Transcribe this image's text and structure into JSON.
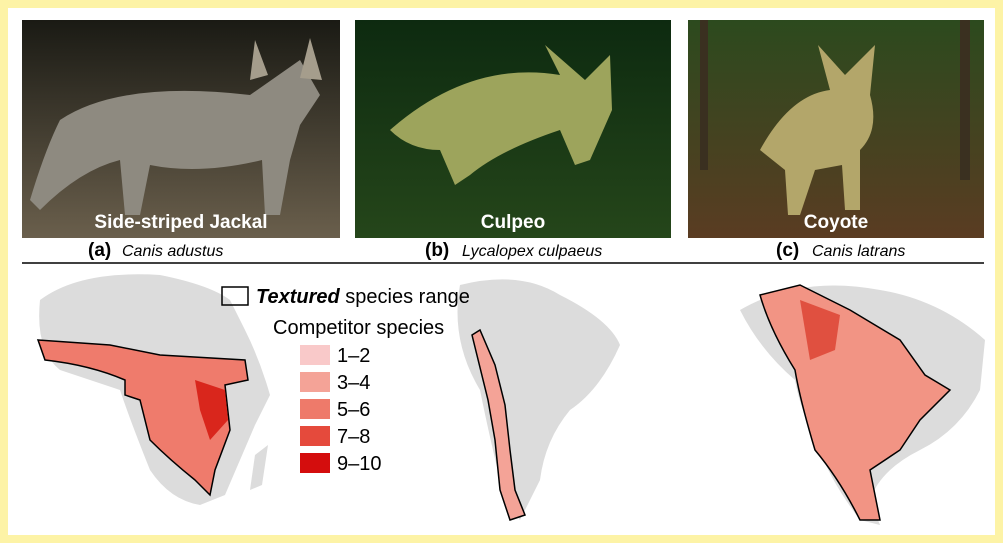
{
  "panels": [
    {
      "label": "(a)",
      "common_name": "Side-striped Jackal",
      "scientific_name": "Canis adustus"
    },
    {
      "label": "(b)",
      "common_name": "Culpeo",
      "scientific_name": "Lycalopex culpaeus"
    },
    {
      "label": "(c)",
      "common_name": "Coyote",
      "scientific_name": "Canis latrans"
    }
  ],
  "legend": {
    "range_emphasis": "Textured",
    "range_text": "species range",
    "title": "Competitor species",
    "items": [
      "1–2",
      "3–4",
      "5–6",
      "7–8",
      "9–10"
    ]
  }
}
